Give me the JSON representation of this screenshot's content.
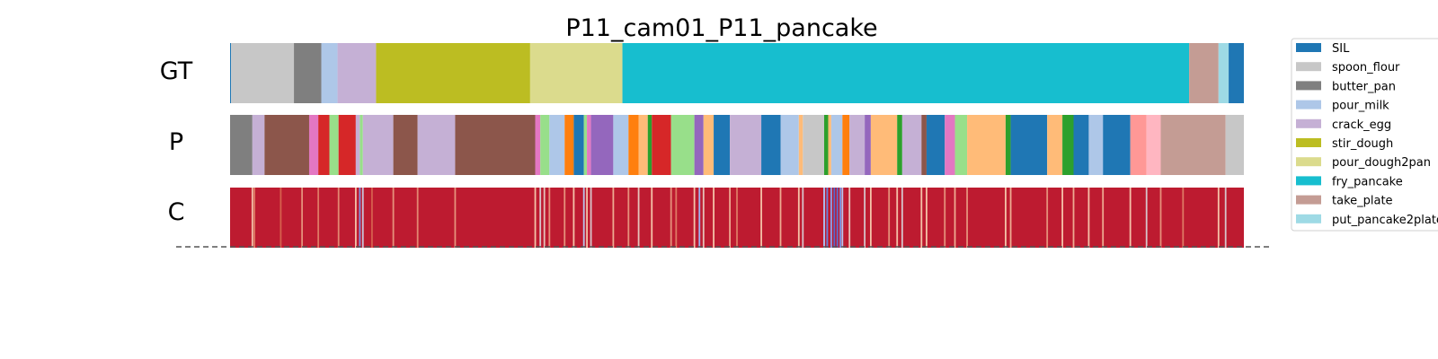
{
  "chart_data": {
    "type": "segmentation-timeline",
    "title": "P11_cam01_P11_pancake",
    "rows": [
      "GT",
      "P",
      "C"
    ],
    "legend": [
      {
        "name": "SIL",
        "color": "#1f77b4"
      },
      {
        "name": "spoon_flour",
        "color": "#c7c7c7"
      },
      {
        "name": "butter_pan",
        "color": "#7f7f7f"
      },
      {
        "name": "pour_milk",
        "color": "#aec7e8"
      },
      {
        "name": "crack_egg",
        "color": "#c5b0d5"
      },
      {
        "name": "stir_dough",
        "color": "#bcbd22"
      },
      {
        "name": "pour_dough2pan",
        "color": "#dbdb8d"
      },
      {
        "name": "fry_pancake",
        "color": "#17becf"
      },
      {
        "name": "take_plate",
        "color": "#c49c94"
      },
      {
        "name": "put_pancake2plate",
        "color": "#9edae5"
      }
    ],
    "timeline_length": 1000,
    "gt_segments": [
      {
        "label": "SIL",
        "start": 0,
        "end": 1
      },
      {
        "label": "spoon_flour",
        "start": 1,
        "end": 63
      },
      {
        "label": "butter_pan",
        "start": 63,
        "end": 90
      },
      {
        "label": "pour_milk",
        "start": 90,
        "end": 106
      },
      {
        "label": "crack_egg",
        "start": 106,
        "end": 144
      },
      {
        "label": "stir_dough",
        "start": 144,
        "end": 296
      },
      {
        "label": "pour_dough2pan",
        "start": 296,
        "end": 387
      },
      {
        "label": "fry_pancake",
        "start": 387,
        "end": 946
      },
      {
        "label": "take_plate",
        "start": 946,
        "end": 975
      },
      {
        "label": "put_pancake2plate",
        "start": 975,
        "end": 985
      },
      {
        "label": "SIL",
        "start": 985,
        "end": 1000
      }
    ],
    "p_segments": [
      {
        "color": "#7f7f7f",
        "start": 0,
        "end": 22
      },
      {
        "color": "#c5b0d5",
        "start": 22,
        "end": 34
      },
      {
        "color": "#8c564b",
        "start": 34,
        "end": 78
      },
      {
        "color": "#e377c2",
        "start": 78,
        "end": 87
      },
      {
        "color": "#d62728",
        "start": 87,
        "end": 98
      },
      {
        "color": "#98df8a",
        "start": 98,
        "end": 107
      },
      {
        "color": "#d62728",
        "start": 107,
        "end": 124
      },
      {
        "color": "#c5b0d5",
        "start": 124,
        "end": 128
      },
      {
        "color": "#98df8a",
        "start": 128,
        "end": 131
      },
      {
        "color": "#c5b0d5",
        "start": 131,
        "end": 161
      },
      {
        "color": "#8c564b",
        "start": 161,
        "end": 185
      },
      {
        "color": "#c5b0d5",
        "start": 185,
        "end": 222
      },
      {
        "color": "#8c564b",
        "start": 222,
        "end": 301
      },
      {
        "color": "#e377c2",
        "start": 301,
        "end": 306
      },
      {
        "color": "#98df8a",
        "start": 306,
        "end": 315
      },
      {
        "color": "#aec7e8",
        "start": 315,
        "end": 330
      },
      {
        "color": "#ff7f0e",
        "start": 330,
        "end": 339
      },
      {
        "color": "#1f77b4",
        "start": 339,
        "end": 349
      },
      {
        "color": "#98df8a",
        "start": 349,
        "end": 352
      },
      {
        "color": "#e377c2",
        "start": 352,
        "end": 356
      },
      {
        "color": "#9467bd",
        "start": 356,
        "end": 378
      },
      {
        "color": "#aec7e8",
        "start": 378,
        "end": 393
      },
      {
        "color": "#ff7f0e",
        "start": 393,
        "end": 403
      },
      {
        "color": "#ffbb78",
        "start": 403,
        "end": 412
      },
      {
        "color": "#2ca02c",
        "start": 412,
        "end": 416
      },
      {
        "color": "#d62728",
        "start": 416,
        "end": 435
      },
      {
        "color": "#98df8a",
        "start": 435,
        "end": 458
      },
      {
        "color": "#9467bd",
        "start": 458,
        "end": 467
      },
      {
        "color": "#ffbb78",
        "start": 467,
        "end": 477
      },
      {
        "color": "#1f77b4",
        "start": 477,
        "end": 493
      },
      {
        "color": "#c5b0d5",
        "start": 493,
        "end": 524
      },
      {
        "color": "#1f77b4",
        "start": 524,
        "end": 543
      },
      {
        "color": "#aec7e8",
        "start": 543,
        "end": 561
      },
      {
        "color": "#ffbb78",
        "start": 561,
        "end": 565
      },
      {
        "color": "#c7c7c7",
        "start": 565,
        "end": 586
      },
      {
        "color": "#2ca02c",
        "start": 586,
        "end": 590
      },
      {
        "color": "#ffbb78",
        "start": 590,
        "end": 593
      },
      {
        "color": "#aec7e8",
        "start": 593,
        "end": 604
      },
      {
        "color": "#ff7f0e",
        "start": 604,
        "end": 611
      },
      {
        "color": "#c5b0d5",
        "start": 611,
        "end": 626
      },
      {
        "color": "#9467bd",
        "start": 626,
        "end": 632
      },
      {
        "color": "#ffbb78",
        "start": 632,
        "end": 658
      },
      {
        "color": "#2ca02c",
        "start": 658,
        "end": 663
      },
      {
        "color": "#c5b0d5",
        "start": 663,
        "end": 682
      },
      {
        "color": "#8c564b",
        "start": 682,
        "end": 687
      },
      {
        "color": "#1f77b4",
        "start": 687,
        "end": 705
      },
      {
        "color": "#e377c2",
        "start": 705,
        "end": 715
      },
      {
        "color": "#98df8a",
        "start": 715,
        "end": 727
      },
      {
        "color": "#ffbb78",
        "start": 727,
        "end": 765
      },
      {
        "color": "#2ca02c",
        "start": 765,
        "end": 770
      },
      {
        "color": "#1f77b4",
        "start": 770,
        "end": 806
      },
      {
        "color": "#ffbb78",
        "start": 806,
        "end": 821
      },
      {
        "color": "#2ca02c",
        "start": 821,
        "end": 832
      },
      {
        "color": "#1f77b4",
        "start": 832,
        "end": 847
      },
      {
        "color": "#aec7e8",
        "start": 847,
        "end": 861
      },
      {
        "color": "#1f77b4",
        "start": 861,
        "end": 888
      },
      {
        "color": "#ff9896",
        "start": 888,
        "end": 904
      },
      {
        "color": "#ffb6c1",
        "start": 904,
        "end": 918
      },
      {
        "color": "#c49c94",
        "start": 918,
        "end": 982
      },
      {
        "color": "#c7c7c7",
        "start": 982,
        "end": 1000
      }
    ],
    "confidence": {
      "base_value": 0.95,
      "dips": [
        {
          "pos": 22,
          "value": 0.6
        },
        {
          "pos": 24,
          "value": 0.75
        },
        {
          "pos": 50,
          "value": 0.8
        },
        {
          "pos": 71,
          "value": 0.7
        },
        {
          "pos": 87,
          "value": 0.75
        },
        {
          "pos": 107,
          "value": 0.72
        },
        {
          "pos": 124,
          "value": 0.6
        },
        {
          "pos": 128,
          "value": 0.2
        },
        {
          "pos": 131,
          "value": 0.45
        },
        {
          "pos": 140,
          "value": 0.8
        },
        {
          "pos": 161,
          "value": 0.7
        },
        {
          "pos": 185,
          "value": 0.72
        },
        {
          "pos": 222,
          "value": 0.7
        },
        {
          "pos": 301,
          "value": 0.6
        },
        {
          "pos": 306,
          "value": 0.5
        },
        {
          "pos": 310,
          "value": 0.55
        },
        {
          "pos": 315,
          "value": 0.7
        },
        {
          "pos": 330,
          "value": 0.7
        },
        {
          "pos": 339,
          "value": 0.6
        },
        {
          "pos": 349,
          "value": 0.4
        },
        {
          "pos": 352,
          "value": 0.6
        },
        {
          "pos": 356,
          "value": 0.5
        },
        {
          "pos": 378,
          "value": 0.65
        },
        {
          "pos": 393,
          "value": 0.7
        },
        {
          "pos": 403,
          "value": 0.55
        },
        {
          "pos": 416,
          "value": 0.6
        },
        {
          "pos": 435,
          "value": 0.7
        },
        {
          "pos": 440,
          "value": 0.75
        },
        {
          "pos": 458,
          "value": 0.6
        },
        {
          "pos": 463,
          "value": 0.3
        },
        {
          "pos": 467,
          "value": 0.55
        },
        {
          "pos": 477,
          "value": 0.6
        },
        {
          "pos": 493,
          "value": 0.65
        },
        {
          "pos": 500,
          "value": 0.75
        },
        {
          "pos": 524,
          "value": 0.6
        },
        {
          "pos": 543,
          "value": 0.65
        },
        {
          "pos": 561,
          "value": 0.6
        },
        {
          "pos": 565,
          "value": 0.5
        },
        {
          "pos": 586,
          "value": 0.35
        },
        {
          "pos": 589,
          "value": 0.15
        },
        {
          "pos": 593,
          "value": 0.25
        },
        {
          "pos": 596,
          "value": 0.08
        },
        {
          "pos": 599,
          "value": 0.1
        },
        {
          "pos": 602,
          "value": 0.2
        },
        {
          "pos": 604,
          "value": 0.4
        },
        {
          "pos": 611,
          "value": 0.55
        },
        {
          "pos": 626,
          "value": 0.5
        },
        {
          "pos": 632,
          "value": 0.6
        },
        {
          "pos": 650,
          "value": 0.7
        },
        {
          "pos": 658,
          "value": 0.6
        },
        {
          "pos": 663,
          "value": 0.5
        },
        {
          "pos": 682,
          "value": 0.6
        },
        {
          "pos": 687,
          "value": 0.6
        },
        {
          "pos": 705,
          "value": 0.7
        },
        {
          "pos": 715,
          "value": 0.65
        },
        {
          "pos": 727,
          "value": 0.7
        },
        {
          "pos": 765,
          "value": 0.6
        },
        {
          "pos": 770,
          "value": 0.65
        },
        {
          "pos": 806,
          "value": 0.7
        },
        {
          "pos": 821,
          "value": 0.6
        },
        {
          "pos": 832,
          "value": 0.65
        },
        {
          "pos": 847,
          "value": 0.6
        },
        {
          "pos": 861,
          "value": 0.65
        },
        {
          "pos": 888,
          "value": 0.6
        },
        {
          "pos": 904,
          "value": 0.5
        },
        {
          "pos": 918,
          "value": 0.7
        },
        {
          "pos": 940,
          "value": 0.75
        },
        {
          "pos": 975,
          "value": 0.6
        },
        {
          "pos": 982,
          "value": 0.5
        }
      ]
    }
  }
}
